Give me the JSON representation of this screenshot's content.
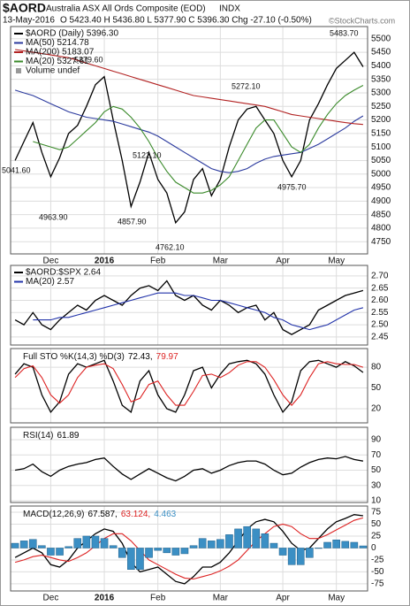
{
  "header": {
    "symbol": "$AORD",
    "name": "Australia ASX All Ords Composite (EOD)",
    "exchange": "INDX",
    "date": "13-May-2016",
    "quote": "O 5423.40  H 5436.80  L 5377.90  C 5396.30  Chg -27.10 (-0.50%)",
    "watermark": "©StockCharts.com"
  },
  "chart_data": [
    {
      "type": "line",
      "categories": [
        null,
        null,
        null,
        null,
        "Dec",
        null,
        null,
        null,
        null,
        null,
        "2016",
        null,
        null,
        null,
        null,
        null,
        "Feb",
        null,
        null,
        null,
        null,
        null,
        null,
        "Mar",
        null,
        null,
        null,
        null,
        null,
        null,
        "Apr",
        null,
        null,
        null,
        null,
        null,
        "May",
        null,
        null,
        null
      ],
      "ylim": [
        4705,
        5545
      ],
      "yticks": [
        4750,
        4800,
        4850,
        4900,
        4950,
        5000,
        5050,
        5100,
        5150,
        5200,
        5250,
        5300,
        5350,
        5400,
        5450,
        5500
      ],
      "series": [
        {
          "name": "$AORD (Daily) 5396.30",
          "color": "#000000",
          "values": [
            5050,
            5120,
            5190,
            5080,
            4990,
            5060,
            5150,
            5180,
            5250,
            5330,
            5360,
            5200,
            5050,
            4880,
            4970,
            5080,
            4980,
            4930,
            4820,
            4860,
            4980,
            5020,
            4920,
            4980,
            5100,
            5200,
            5240,
            5250,
            5200,
            5150,
            5050,
            4990,
            5050,
            5200,
            5260,
            5330,
            5390,
            5420,
            5450,
            5396.3
          ]
        },
        {
          "name": "MA(50) 5214.78",
          "color": "#2b3a9e",
          "values": [
            5310,
            5300,
            5290,
            5275,
            5260,
            5245,
            5230,
            5220,
            5210,
            5205,
            5200,
            5195,
            5185,
            5175,
            5165,
            5155,
            5140,
            5120,
            5100,
            5080,
            5060,
            5040,
            5020,
            5010,
            5005,
            5010,
            5020,
            5040,
            5055,
            5065,
            5070,
            5075,
            5080,
            5095,
            5110,
            5130,
            5150,
            5170,
            5195,
            5214.78
          ]
        },
        {
          "name": "MA(200) 5183.07",
          "color": "#b22222",
          "values": [
            5460,
            5455,
            5450,
            5445,
            5440,
            5435,
            5430,
            5420,
            5410,
            5400,
            5390,
            5380,
            5370,
            5360,
            5350,
            5340,
            5330,
            5320,
            5310,
            5300,
            5290,
            5285,
            5280,
            5275,
            5270,
            5265,
            5260,
            5255,
            5250,
            5240,
            5230,
            5220,
            5215,
            5210,
            5205,
            5200,
            5195,
            5190,
            5186,
            5183.07
          ]
        },
        {
          "name": "MA(20) 5327.61",
          "color": "#3a8a2a",
          "values": [
            null,
            null,
            5120,
            5110,
            5100,
            5090,
            5100,
            5130,
            5160,
            5190,
            5230,
            5250,
            5240,
            5210,
            5170,
            5120,
            5060,
            5010,
            4970,
            4950,
            4930,
            4930,
            4940,
            4960,
            4990,
            5050,
            5110,
            5170,
            5200,
            5200,
            5150,
            5100,
            5080,
            5110,
            5170,
            5220,
            5260,
            5290,
            5310,
            5327.61
          ]
        }
      ],
      "legend_extra": "Volume undef",
      "annotations": [
        "5041.60",
        "4963.90",
        "5379.60",
        "4857.90",
        "5122.10",
        "4762.10",
        "5272.10",
        "4975.70",
        "5483.70"
      ]
    },
    {
      "type": "line",
      "ylim": [
        2.417,
        2.743
      ],
      "yticks": [
        2.45,
        {
          "value": 2.5,
          "label": "2.50"
        },
        2.55,
        {
          "value": 2.6,
          "label": "2.60"
        },
        2.65,
        {
          "value": 2.7,
          "label": "2.70"
        }
      ],
      "series": [
        {
          "name": "$AORD:$SPX 2.64",
          "color": "#000000",
          "values": [
            2.52,
            2.5,
            2.55,
            2.5,
            2.48,
            2.52,
            2.55,
            2.58,
            2.56,
            2.6,
            2.62,
            2.6,
            2.58,
            2.62,
            2.65,
            2.66,
            2.64,
            2.68,
            2.62,
            2.6,
            2.62,
            2.58,
            2.56,
            2.6,
            2.58,
            2.55,
            2.57,
            2.58,
            2.52,
            2.55,
            2.48,
            2.46,
            2.48,
            2.5,
            2.56,
            2.58,
            2.6,
            2.62,
            2.63,
            2.64
          ]
        },
        {
          "name": "MA(20) 2.57",
          "color": "#2233aa",
          "values": [
            null,
            null,
            2.52,
            2.52,
            2.52,
            2.53,
            2.53,
            2.54,
            2.55,
            2.56,
            2.57,
            2.58,
            2.59,
            2.6,
            2.61,
            2.62,
            2.63,
            2.63,
            2.63,
            2.62,
            2.62,
            2.61,
            2.6,
            2.6,
            2.59,
            2.58,
            2.57,
            2.56,
            2.55,
            2.53,
            2.52,
            2.5,
            2.49,
            2.48,
            2.49,
            2.5,
            2.52,
            2.54,
            2.56,
            2.57
          ]
        }
      ]
    },
    {
      "type": "line",
      "label": "Full STO %K(14,3) %D(3)",
      "ylim": [
        -0.5,
        107
      ],
      "yticks": [
        20,
        50,
        80
      ],
      "series": [
        {
          "name": "72.43,",
          "color": "#000000",
          "values": [
            70,
            85,
            80,
            40,
            15,
            30,
            70,
            85,
            80,
            85,
            90,
            60,
            25,
            15,
            60,
            75,
            40,
            20,
            15,
            40,
            75,
            80,
            50,
            70,
            85,
            88,
            90,
            85,
            70,
            40,
            15,
            30,
            75,
            88,
            90,
            85,
            80,
            88,
            82,
            72.43
          ]
        },
        {
          "name": "79.97",
          "color": "#dd2222",
          "values": [
            65,
            78,
            82,
            65,
            40,
            28,
            40,
            65,
            80,
            83,
            85,
            78,
            55,
            30,
            35,
            55,
            60,
            40,
            25,
            25,
            45,
            68,
            70,
            65,
            72,
            83,
            88,
            88,
            80,
            62,
            40,
            25,
            40,
            65,
            85,
            88,
            85,
            84,
            84,
            79.97
          ]
        }
      ]
    },
    {
      "type": "line",
      "label": "RSI(14)",
      "ylim": [
        7.7,
        106.2
      ],
      "yticks": [
        10,
        30,
        50,
        70,
        90
      ],
      "series": [
        {
          "name": "61.89",
          "color": "#000000",
          "values": [
            50,
            52,
            58,
            48,
            42,
            50,
            55,
            58,
            60,
            64,
            66,
            55,
            45,
            38,
            45,
            52,
            46,
            40,
            36,
            42,
            50,
            52,
            46,
            50,
            56,
            60,
            62,
            62,
            58,
            50,
            44,
            46,
            54,
            60,
            64,
            66,
            65,
            68,
            64,
            61.89
          ]
        }
      ]
    },
    {
      "type": "line",
      "label": "MACD(12,26,9)",
      "categories": [
        null,
        null,
        null,
        null,
        "Dec",
        null,
        null,
        null,
        null,
        null,
        "2016",
        null,
        null,
        null,
        null,
        null,
        "Feb",
        null,
        null,
        null,
        null,
        null,
        null,
        "Mar",
        null,
        null,
        null,
        null,
        null,
        null,
        "Apr",
        null,
        null,
        null,
        null,
        null,
        "May",
        null,
        null,
        null
      ],
      "ylim": [
        -90,
        88
      ],
      "yticks": [
        -75,
        -50,
        -25,
        0,
        25,
        50,
        75
      ],
      "series": [
        {
          "name": "67.587,",
          "color": "#000000",
          "values": [
            -20,
            -10,
            0,
            -10,
            -35,
            -40,
            -25,
            0,
            15,
            30,
            40,
            35,
            10,
            -30,
            -50,
            -45,
            -40,
            -55,
            -70,
            -75,
            -60,
            -40,
            -40,
            -30,
            -10,
            15,
            40,
            55,
            60,
            55,
            35,
            10,
            -5,
            0,
            20,
            40,
            55,
            62,
            70,
            67.587
          ]
        },
        {
          "name": "63.124,",
          "color": "#dd2222",
          "values": [
            -30,
            -25,
            -18,
            -15,
            -20,
            -25,
            -28,
            -20,
            -10,
            5,
            20,
            30,
            30,
            15,
            -5,
            -25,
            -35,
            -45,
            -55,
            -63,
            -65,
            -60,
            -55,
            -48,
            -38,
            -25,
            -5,
            15,
            30,
            45,
            50,
            45,
            30,
            20,
            20,
            28,
            38,
            48,
            58,
            63.124
          ]
        },
        {
          "name": "4.463",
          "color": "#3b8fc4",
          "type": "bar",
          "values": [
            10,
            15,
            18,
            5,
            -15,
            -15,
            3,
            20,
            25,
            25,
            20,
            5,
            -20,
            -45,
            -45,
            -20,
            -5,
            -10,
            -15,
            -12,
            5,
            20,
            15,
            18,
            28,
            40,
            45,
            40,
            30,
            10,
            -15,
            -35,
            -35,
            -20,
            0,
            12,
            17,
            14,
            12,
            4.463
          ]
        }
      ]
    }
  ]
}
